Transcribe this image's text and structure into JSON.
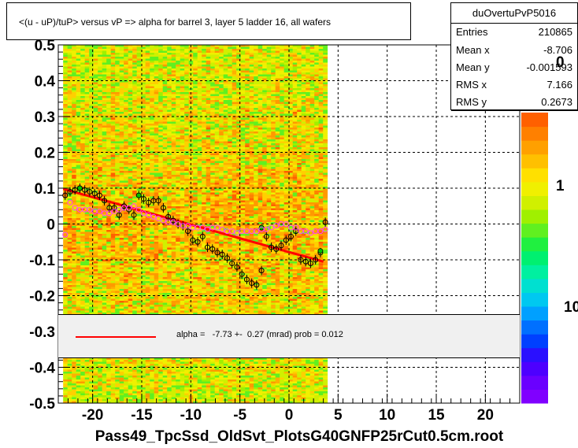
{
  "title": "<(u - uP)/tuP> versus   vP => alpha for barrel 3, layer 5 ladder 16, all wafers",
  "x_title": "Pass49_TpcSsd_OldSvt_PlotsG40GNFP25rCut0.5cm.root",
  "stats": {
    "name": "duOvertuPvP5016",
    "rows": [
      {
        "key": "Entries",
        "value": "210865"
      },
      {
        "key": "Mean x",
        "value": "-8.706"
      },
      {
        "key": "Mean y",
        "value": "-0.001593"
      },
      {
        "key": "RMS x",
        "value": "7.166"
      },
      {
        "key": "RMS y",
        "value": "0.2673"
      }
    ]
  },
  "fit_legend": {
    "text": "alpha =   -7.73 +-  0.27 (mrad) prob = 0.012",
    "line_color": "#ff0000"
  },
  "palette": {
    "labels": [
      "0",
      "1",
      "10"
    ],
    "colors": [
      "#8000ff",
      "#6a00ff",
      "#4d00ff",
      "#2a10ff",
      "#0040ff",
      "#0070ff",
      "#00a0ff",
      "#00c8f0",
      "#00e0d0",
      "#00f0a0",
      "#00f070",
      "#20f040",
      "#60f020",
      "#a0f000",
      "#d0f000",
      "#f0f000",
      "#ffe000",
      "#ffc000",
      "#ffa000",
      "#ff8000",
      "#ff6000"
    ]
  },
  "chart_data": {
    "type": "scatter",
    "xlim": [
      -23.5,
      23.5
    ],
    "ylim": [
      -0.5,
      0.5
    ],
    "x_ticks": [
      -20,
      -15,
      -10,
      -5,
      0,
      5,
      10,
      15,
      20
    ],
    "y_ticks": [
      -0.5,
      -0.4,
      -0.3,
      -0.2,
      -0.1,
      0,
      0.1,
      0.2,
      0.3,
      0.4,
      0.5
    ],
    "grid": true,
    "heatmap_x_range": [
      -23,
      3.5
    ],
    "fit_line": {
      "x": [
        -23,
        3.5
      ],
      "y": [
        0.098,
        -0.105
      ],
      "color": "#ff0000"
    },
    "series": [
      {
        "marker": "black-open-circle",
        "points": [
          [
            -22.8,
            0.08
          ],
          [
            -22.3,
            0.09
          ],
          [
            -21.8,
            0.095
          ],
          [
            -21.3,
            0.1
          ],
          [
            -20.8,
            0.095
          ],
          [
            -20.3,
            0.09
          ],
          [
            -19.8,
            0.085
          ],
          [
            -19.3,
            0.08
          ],
          [
            -18.8,
            0.065
          ],
          [
            -18.3,
            0.045
          ],
          [
            -17.8,
            0.045
          ],
          [
            -17.3,
            0.025
          ],
          [
            -16.8,
            0.05
          ],
          [
            -16.3,
            0.04
          ],
          [
            -15.8,
            0.025
          ],
          [
            -15.3,
            0.08
          ],
          [
            -14.8,
            0.07
          ],
          [
            -14.3,
            0.06
          ],
          [
            -13.8,
            0.065
          ],
          [
            -13.3,
            0.065
          ],
          [
            -12.8,
            0.045
          ],
          [
            -12.3,
            0.02
          ],
          [
            -11.8,
            0.01
          ],
          [
            -11.3,
            0.0
          ],
          [
            -10.8,
            -0.005
          ],
          [
            -10.3,
            -0.02
          ],
          [
            -9.8,
            -0.045
          ],
          [
            -9.3,
            -0.05
          ],
          [
            -8.8,
            -0.035
          ],
          [
            -8.3,
            -0.065
          ],
          [
            -7.8,
            -0.07
          ],
          [
            -7.3,
            -0.08
          ],
          [
            -6.8,
            -0.085
          ],
          [
            -6.3,
            -0.095
          ],
          [
            -5.8,
            -0.11
          ],
          [
            -5.3,
            -0.12
          ],
          [
            -4.8,
            -0.14
          ],
          [
            -4.3,
            -0.155
          ],
          [
            -3.8,
            -0.165
          ],
          [
            -3.3,
            -0.17
          ],
          [
            -2.8,
            -0.13
          ],
          [
            -2.3,
            -0.035
          ],
          [
            -1.8,
            -0.065
          ],
          [
            -1.3,
            -0.07
          ],
          [
            -0.8,
            -0.06
          ],
          [
            -0.3,
            -0.045
          ],
          [
            0.2,
            -0.035
          ],
          [
            0.7,
            -0.02
          ],
          [
            1.2,
            -0.1
          ],
          [
            1.7,
            -0.105
          ],
          [
            2.2,
            -0.11
          ],
          [
            2.7,
            -0.1
          ],
          [
            3.2,
            -0.08
          ],
          [
            3.7,
            0.005
          ]
        ]
      },
      {
        "marker": "green-fill",
        "points": [
          [
            -21.3,
            0.1
          ],
          [
            -15.3,
            0.08
          ],
          [
            -2.8,
            -0.01
          ],
          [
            3.2,
            -0.075
          ]
        ]
      },
      {
        "marker": "pink-open-circle",
        "points": [
          [
            -22.8,
            -0.03
          ],
          [
            -22.3,
            0.06
          ],
          [
            -21.8,
            0.045
          ],
          [
            -21.3,
            0.04
          ],
          [
            -20.8,
            0.04
          ],
          [
            -20.3,
            0.04
          ],
          [
            -19.8,
            0.035
          ],
          [
            -19.3,
            0.035
          ],
          [
            -18.8,
            0.03
          ],
          [
            -18.3,
            0.03
          ],
          [
            -17.8,
            0.035
          ],
          [
            -17.3,
            0.04
          ],
          [
            -16.8,
            0.045
          ],
          [
            -16.3,
            0.045
          ],
          [
            -15.8,
            0.05
          ],
          [
            -15.3,
            0.04
          ],
          [
            -14.8,
            0.03
          ],
          [
            -14.3,
            0.025
          ],
          [
            -13.8,
            0.02
          ],
          [
            -13.3,
            0.015
          ],
          [
            -12.8,
            0.01
          ],
          [
            -12.3,
            0.005
          ],
          [
            -11.8,
            0.005
          ],
          [
            -11.3,
            0.0
          ],
          [
            -10.8,
            -0.005
          ],
          [
            -10.3,
            -0.005
          ],
          [
            -9.8,
            -0.01
          ],
          [
            -9.3,
            -0.01
          ],
          [
            -8.8,
            -0.01
          ],
          [
            -8.3,
            -0.015
          ],
          [
            -7.8,
            -0.01
          ],
          [
            -7.3,
            -0.01
          ],
          [
            -6.8,
            -0.015
          ],
          [
            -6.3,
            -0.02
          ],
          [
            -5.8,
            -0.02
          ],
          [
            -5.3,
            -0.025
          ],
          [
            -4.8,
            -0.02
          ],
          [
            -4.3,
            -0.02
          ],
          [
            -3.8,
            -0.02
          ],
          [
            -3.3,
            -0.02
          ],
          [
            -2.8,
            -0.015
          ],
          [
            -2.3,
            -0.015
          ],
          [
            -1.8,
            -0.01
          ],
          [
            -1.3,
            -0.005
          ],
          [
            -0.8,
            0.0
          ],
          [
            -0.3,
            0.0
          ],
          [
            0.2,
            -0.01
          ],
          [
            0.7,
            -0.01
          ],
          [
            1.2,
            -0.02
          ],
          [
            1.7,
            -0.02
          ],
          [
            2.2,
            -0.025
          ],
          [
            2.7,
            -0.02
          ],
          [
            3.2,
            -0.02
          ],
          [
            3.7,
            -0.015
          ]
        ]
      }
    ]
  }
}
